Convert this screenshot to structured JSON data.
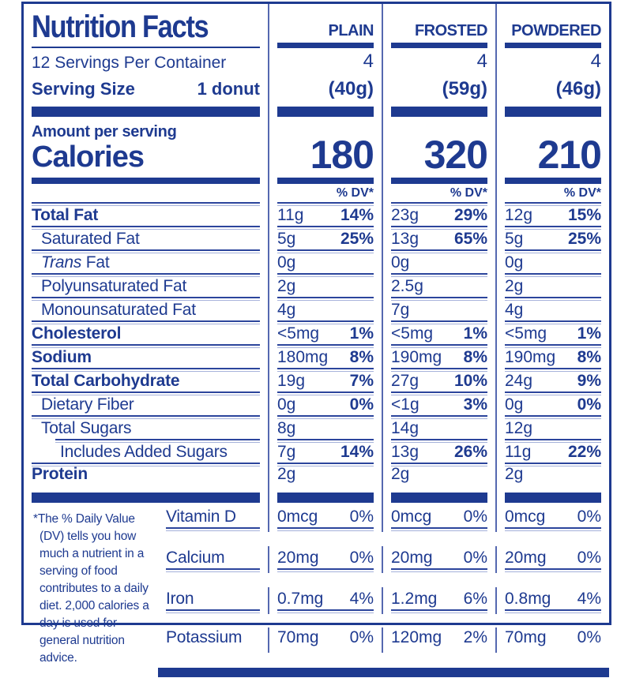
{
  "colors": {
    "blue": "#1e3a90",
    "divider": "#5568b0",
    "light_line": "#a5b1da"
  },
  "header": {
    "title": "Nutrition Facts",
    "servings_per_container": "12 Servings Per Container",
    "serving_size_label": "Serving Size",
    "serving_size_value": "1 donut",
    "amount_per_serving": "Amount per serving",
    "calories_label": "Calories",
    "dv_label": "% DV*"
  },
  "variants": [
    {
      "name": "PLAIN",
      "servings": "4",
      "serving_weight": "(40g)",
      "calories": "180"
    },
    {
      "name": "FROSTED",
      "servings": "4",
      "serving_weight": "(59g)",
      "calories": "320"
    },
    {
      "name": "POWDERED",
      "servings": "4",
      "serving_weight": "(46g)",
      "calories": "210"
    }
  ],
  "nutrients": [
    {
      "label": "Total Fat",
      "cols": [
        {
          "amt": "11g",
          "pct": "14%"
        },
        {
          "amt": "23g",
          "pct": "29%"
        },
        {
          "amt": "12g",
          "pct": "15%"
        }
      ]
    },
    {
      "label": "Saturated Fat",
      "cols": [
        {
          "amt": "5g",
          "pct": "25%"
        },
        {
          "amt": "13g",
          "pct": "65%"
        },
        {
          "amt": "5g",
          "pct": "25%"
        }
      ]
    },
    {
      "label_em": "Trans",
      "label": " Fat",
      "cols": [
        {
          "amt": "0g"
        },
        {
          "amt": "0g"
        },
        {
          "amt": "0g"
        }
      ]
    },
    {
      "label": "Polyunsaturated Fat",
      "cols": [
        {
          "amt": "2g"
        },
        {
          "amt": "2.5g"
        },
        {
          "amt": "2g"
        }
      ]
    },
    {
      "label": "Monounsaturated Fat",
      "cols": [
        {
          "amt": "4g"
        },
        {
          "amt": "7g"
        },
        {
          "amt": "4g"
        }
      ]
    },
    {
      "label": "Cholesterol",
      "cols": [
        {
          "amt": "<5mg",
          "pct": "1%"
        },
        {
          "amt": "<5mg",
          "pct": "1%"
        },
        {
          "amt": "<5mg",
          "pct": "1%"
        }
      ]
    },
    {
      "label": "Sodium",
      "cols": [
        {
          "amt": "180mg",
          "pct": "8%"
        },
        {
          "amt": "190mg",
          "pct": "8%"
        },
        {
          "amt": "190mg",
          "pct": "8%"
        }
      ]
    },
    {
      "label": "Total Carbohydrate",
      "cols": [
        {
          "amt": "19g",
          "pct": "7%"
        },
        {
          "amt": "27g",
          "pct": "10%"
        },
        {
          "amt": "24g",
          "pct": "9%"
        }
      ]
    },
    {
      "label": "Dietary Fiber",
      "cols": [
        {
          "amt": "0g",
          "pct": "0%"
        },
        {
          "amt": "<1g",
          "pct": "3%"
        },
        {
          "amt": "0g",
          "pct": "0%"
        }
      ]
    },
    {
      "label": "Total Sugars",
      "cols": [
        {
          "amt": "8g"
        },
        {
          "amt": "14g"
        },
        {
          "amt": "12g"
        }
      ]
    },
    {
      "label": "Includes Added Sugars",
      "cols": [
        {
          "amt": "7g",
          "pct": "14%"
        },
        {
          "amt": "13g",
          "pct": "26%"
        },
        {
          "amt": "11g",
          "pct": "22%"
        }
      ]
    },
    {
      "label": "Protein",
      "cols": [
        {
          "amt": "2g"
        },
        {
          "amt": "2g"
        },
        {
          "amt": "2g"
        }
      ]
    }
  ],
  "vitamins": [
    {
      "label": "Vitamin D",
      "cols": [
        {
          "amt": "0mcg",
          "pct": "0%"
        },
        {
          "amt": "0mcg",
          "pct": "0%"
        },
        {
          "amt": "0mcg",
          "pct": "0%"
        }
      ]
    },
    {
      "label": "Calcium",
      "cols": [
        {
          "amt": "20mg",
          "pct": "0%"
        },
        {
          "amt": "20mg",
          "pct": "0%"
        },
        {
          "amt": "20mg",
          "pct": "0%"
        }
      ]
    },
    {
      "label": "Iron",
      "cols": [
        {
          "amt": "0.7mg",
          "pct": "4%"
        },
        {
          "amt": "1.2mg",
          "pct": "6%"
        },
        {
          "amt": "0.8mg",
          "pct": "4%"
        }
      ]
    },
    {
      "label": "Potassium",
      "cols": [
        {
          "amt": "70mg",
          "pct": "0%"
        },
        {
          "amt": "120mg",
          "pct": "2%"
        },
        {
          "amt": "70mg",
          "pct": "0%"
        }
      ]
    }
  ],
  "footnote": "*The % Daily Value (DV) tells you how much a nutrient in a serving of food contributes to a daily diet. 2,000 calories a day is used for general nutrition advice."
}
